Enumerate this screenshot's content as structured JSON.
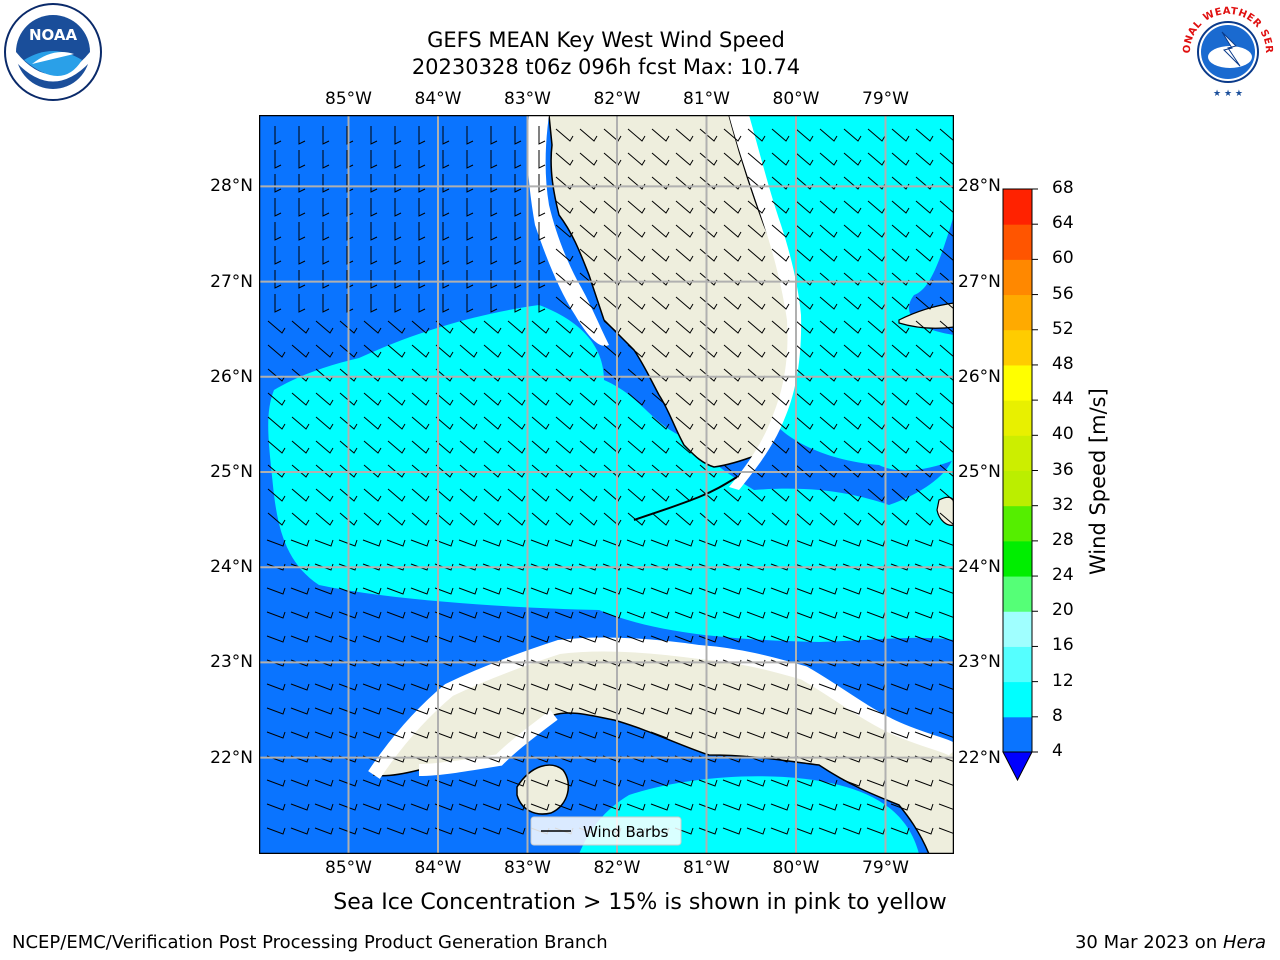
{
  "header": {
    "title_line1": "GEFS MEAN Key West Wind Speed",
    "title_line2": "20230328 t06z 096h fcst   Max: 10.74"
  },
  "logos": {
    "left": {
      "label": "NOAA",
      "icon": "noaa-logo"
    },
    "right": {
      "label": "NATIONAL WEATHER SERVICE",
      "icon": "nws-logo"
    }
  },
  "map": {
    "lon_ticks": [
      {
        "lon": -85,
        "label": "85°W"
      },
      {
        "lon": -84,
        "label": "84°W"
      },
      {
        "lon": -83,
        "label": "83°W"
      },
      {
        "lon": -82,
        "label": "82°W"
      },
      {
        "lon": -81,
        "label": "81°W"
      },
      {
        "lon": -80,
        "label": "80°W"
      },
      {
        "lon": -79,
        "label": "79°W"
      }
    ],
    "lat_ticks": [
      {
        "lat": 28,
        "label": "28°N"
      },
      {
        "lat": 27,
        "label": "27°N"
      },
      {
        "lat": 26,
        "label": "26°N"
      },
      {
        "lat": 25,
        "label": "25°N"
      },
      {
        "lat": 24,
        "label": "24°N"
      },
      {
        "lat": 23,
        "label": "23°N"
      },
      {
        "lat": 22,
        "label": "22°N"
      }
    ],
    "legend_label": "Wind Barbs",
    "colors": {
      "ocean_low": "#0a74ff",
      "ocean_mid": "#00ffff",
      "land": "#eeeedd",
      "grid": "#b0b0b0"
    }
  },
  "colorbar": {
    "title": "Wind Speed [m/s]",
    "levels": [
      4,
      8,
      12,
      16,
      20,
      24,
      28,
      32,
      36,
      40,
      44,
      48,
      52,
      56,
      60,
      64,
      68
    ],
    "colors": [
      "#0a74ff",
      "#00ffff",
      "#55ffff",
      "#a0ffff",
      "#55ff77",
      "#00ee00",
      "#55ee00",
      "#bbee00",
      "#ccee00",
      "#e8f000",
      "#ffff00",
      "#ffcc00",
      "#ffaa00",
      "#ff8800",
      "#ff5500",
      "#ff2200"
    ],
    "under_color": "#0000ff"
  },
  "subtitle": "Sea Ice Concentration > 15% is shown in pink to yellow",
  "footer": {
    "left": "NCEP/EMC/Verification Post Processing Product Generation Branch",
    "right_date": "30 Mar 2023 on ",
    "right_host": "Hera"
  }
}
